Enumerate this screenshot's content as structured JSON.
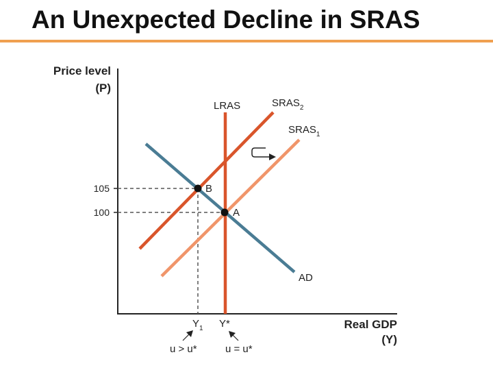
{
  "slide": {
    "title": "An Unexpected Decline in SRAS"
  },
  "axes": {
    "y_label_line1": "Price level",
    "y_label_line2": "(P)",
    "x_label_line1": "Real GDP",
    "x_label_line2": "(Y)"
  },
  "ticks": {
    "p105": "105",
    "p100": "100",
    "y1_main": "Y",
    "y1_sub": "1",
    "ystar": "Y*"
  },
  "curves": {
    "lras": "LRAS",
    "sras2_main": "SRAS",
    "sras2_sub": "2",
    "sras1_main": "SRAS",
    "sras1_sub": "1",
    "ad": "AD"
  },
  "points": {
    "a": "A",
    "b": "B"
  },
  "notes": {
    "u_gt": "u > u*",
    "u_eq": "u = u*"
  },
  "colors": {
    "lras": "#d9552b",
    "sras2": "#d9552b",
    "sras1": "#f0956a",
    "ad": "#4a7c94",
    "guide": "#555555",
    "axis": "#222222"
  }
}
